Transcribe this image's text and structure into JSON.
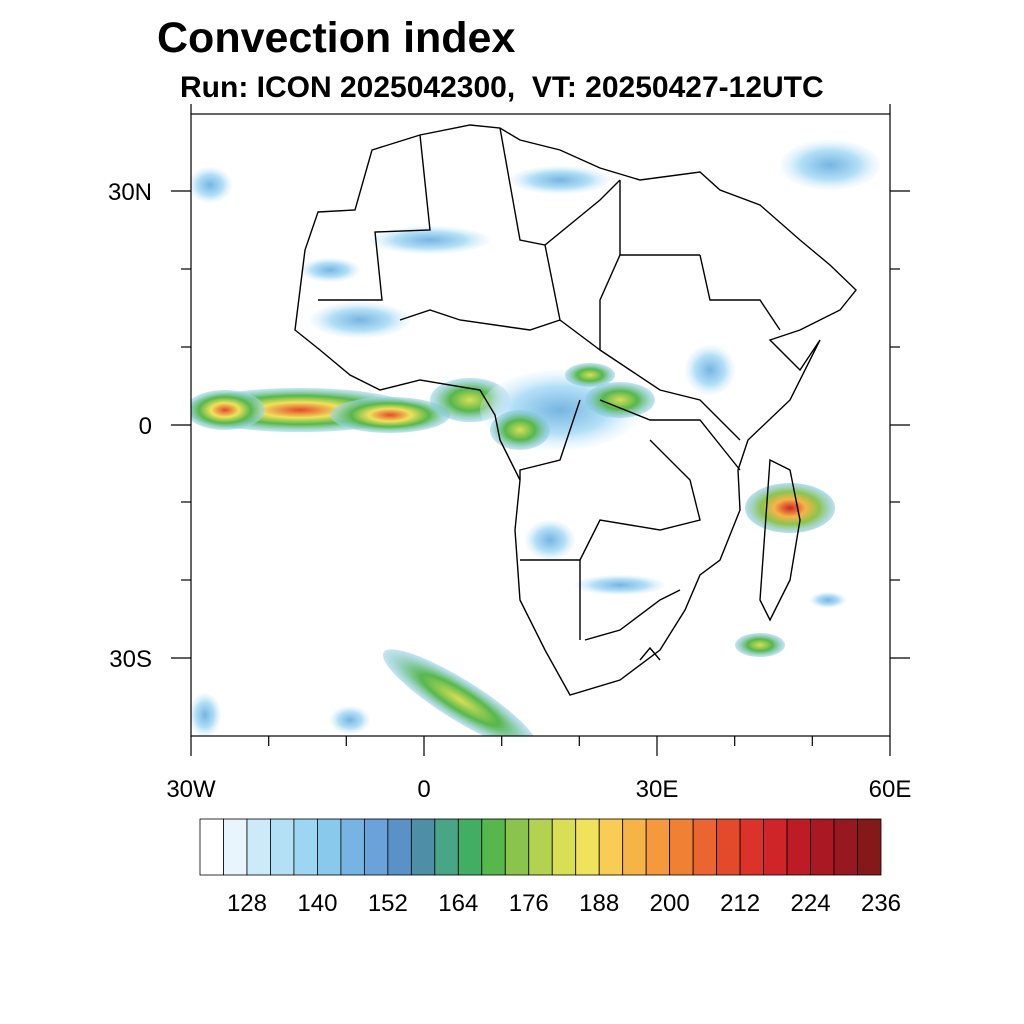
{
  "title": "Convection index",
  "subtitle": "Run: ICON 2025042300,  VT: 20250427-12UTC",
  "map": {
    "lon_labels": [
      "30W",
      "0",
      "30E",
      "60E"
    ],
    "lat_labels": [
      "30N",
      "0",
      "30S"
    ]
  },
  "colorbar": {
    "labels": [
      "128",
      "140",
      "152",
      "164",
      "176",
      "188",
      "200",
      "212",
      "224",
      "236"
    ],
    "colors": [
      "#ffffff",
      "#e8f5fc",
      "#cdeaf8",
      "#b4e0f6",
      "#9dd6f3",
      "#88c9ec",
      "#76b5e3",
      "#6aa2d9",
      "#5a92c8",
      "#4f8fa5",
      "#4aa486",
      "#42ae63",
      "#56b74c",
      "#8bc44d",
      "#b2d250",
      "#d8df55",
      "#f0e25b",
      "#f8cd55",
      "#f6b447",
      "#f49a3c",
      "#f08134",
      "#ea6530",
      "#e34a2b",
      "#db3329",
      "#cf2428",
      "#bd1c26",
      "#aa1923",
      "#971820",
      "#851819"
    ]
  }
}
